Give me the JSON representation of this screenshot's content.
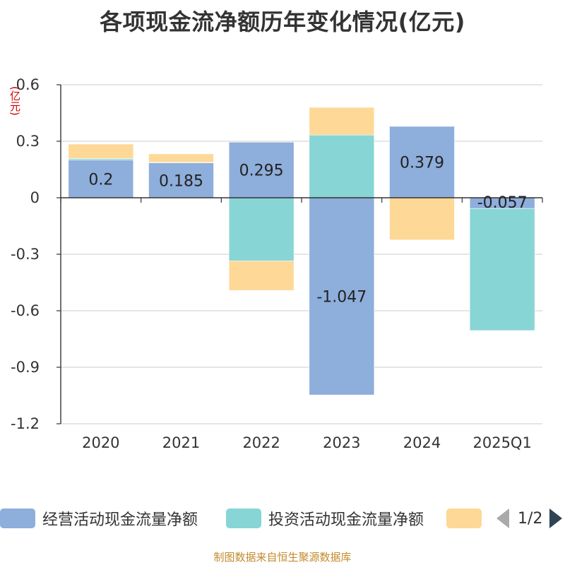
{
  "title": "各项现金流净额历年变化情况(亿元)",
  "footer": "制图数据来自恒生聚源数据库",
  "legend": {
    "items": [
      {
        "label": "经营活动现金流量净额",
        "color": "#8eaedb"
      },
      {
        "label": "投资活动现金流量净额",
        "color": "#88d5d6"
      },
      {
        "label": "",
        "color": "#fed897"
      }
    ],
    "page_text": "1/2"
  },
  "chart_data": {
    "type": "bar",
    "stacked": true,
    "title": "各项现金流净额历年变化情况(亿元)",
    "ylabel": "(亿元)",
    "categories": [
      "2020",
      "2021",
      "2022",
      "2023",
      "2024",
      "2025Q1"
    ],
    "ylim": [
      -1.2,
      0.6
    ],
    "yticks": [
      0.6,
      0.3,
      0,
      -0.3,
      -0.6,
      -0.9,
      -1.2
    ],
    "ytick_labels": [
      "0.6",
      "0.3",
      "0",
      "-0.3",
      "-0.6",
      "-0.9",
      "-1.2"
    ],
    "grid": true,
    "series": [
      {
        "name": "经营活动现金流量净额",
        "color": "#8eaedb",
        "values": [
          0.2,
          0.185,
          0.295,
          -1.047,
          0.379,
          -0.057
        ],
        "show_labels": true
      },
      {
        "name": "投资活动现金流量净额",
        "color": "#88d5d6",
        "values": [
          0.008,
          0.003,
          -0.335,
          0.333,
          0.0,
          -0.648
        ],
        "show_labels": false
      },
      {
        "color": "#fed897",
        "values": [
          0.077,
          0.045,
          -0.157,
          0.147,
          -0.224,
          0.0
        ],
        "show_labels": false
      }
    ]
  }
}
